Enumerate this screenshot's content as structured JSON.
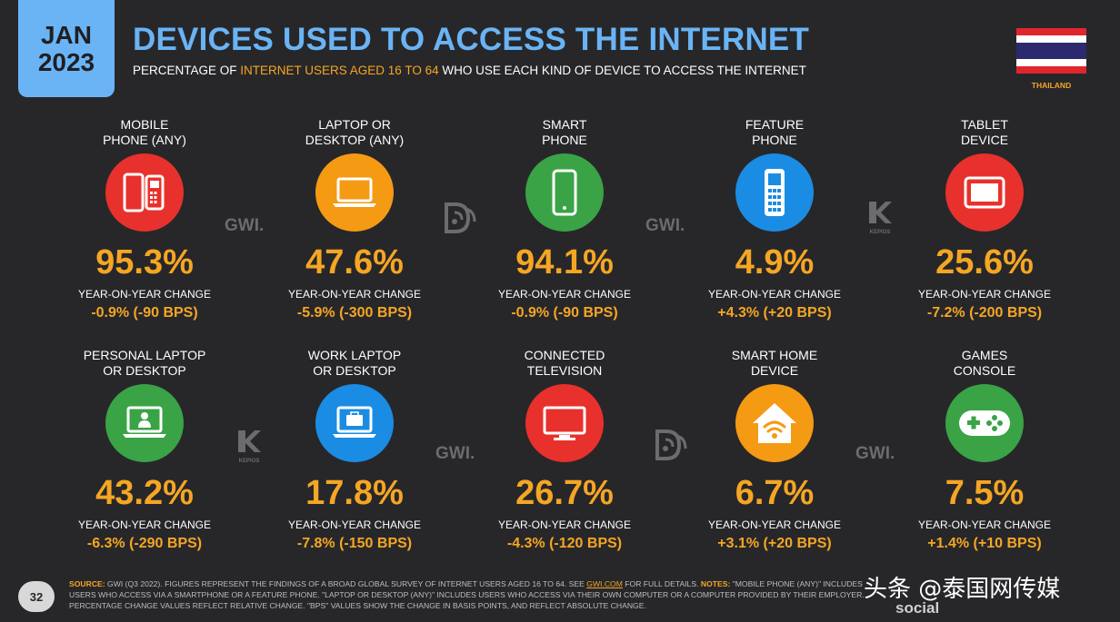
{
  "badge": {
    "month": "JAN",
    "year": "2023"
  },
  "title": "DEVICES USED TO ACCESS THE INTERNET",
  "subtitle": {
    "pre": "PERCENTAGE OF ",
    "highlight": "INTERNET USERS AGED 16 TO 64",
    "post": " WHO USE EACH KIND OF DEVICE TO ACCESS THE INTERNET"
  },
  "country": "THAILAND",
  "yoy_label": "YEAR-ON-YEAR CHANGE",
  "devices": [
    {
      "label": "MOBILE\nPHONE (ANY)",
      "value": "95.3%",
      "change": "-0.9% (-90 BPS)",
      "icon": "mobile-phones-icon",
      "color": "#e8312c"
    },
    {
      "label": "LAPTOP OR\nDESKTOP (ANY)",
      "value": "47.6%",
      "change": "-5.9% (-300 BPS)",
      "icon": "laptop-icon",
      "color": "#f59a13"
    },
    {
      "label": "SMART\nPHONE",
      "value": "94.1%",
      "change": "-0.9% (-90 BPS)",
      "icon": "smartphone-icon",
      "color": "#3aa346"
    },
    {
      "label": "FEATURE\nPHONE",
      "value": "4.9%",
      "change": "+4.3% (+20 BPS)",
      "icon": "feature-phone-icon",
      "color": "#1b8ce3"
    },
    {
      "label": "TABLET\nDEVICE",
      "value": "25.6%",
      "change": "-7.2% (-200 BPS)",
      "icon": "tablet-icon",
      "color": "#e8312c"
    },
    {
      "label": "PERSONAL LAPTOP\nOR DESKTOP",
      "value": "43.2%",
      "change": "-6.3% (-290 BPS)",
      "icon": "personal-laptop-icon",
      "color": "#3aa346"
    },
    {
      "label": "WORK LAPTOP\nOR DESKTOP",
      "value": "17.8%",
      "change": "-7.8% (-150 BPS)",
      "icon": "work-laptop-icon",
      "color": "#1b8ce3"
    },
    {
      "label": "CONNECTED\nTELEVISION",
      "value": "26.7%",
      "change": "-4.3% (-120 BPS)",
      "icon": "television-icon",
      "color": "#e8312c"
    },
    {
      "label": "SMART HOME\nDEVICE",
      "value": "6.7%",
      "change": "+3.1% (+20 BPS)",
      "icon": "smart-home-icon",
      "color": "#f59a13"
    },
    {
      "label": "GAMES\nCONSOLE",
      "value": "7.5%",
      "change": "+1.4% (+10 BPS)",
      "icon": "game-controller-icon",
      "color": "#3aa346"
    }
  ],
  "watermarks": {
    "gwi": "GWI.",
    "kepios": "KEPIOS"
  },
  "footer": {
    "source_label": "SOURCE:",
    "source_text": " GWI (Q3 2022). FIGURES REPRESENT THE FINDINGS OF A BROAD GLOBAL SURVEY OF INTERNET USERS AGED 16 TO 64. SEE ",
    "link": "GWI.COM",
    "after_link": " FOR FULL DETAILS. ",
    "notes_label": "NOTES:",
    "notes_text": " \"MOBILE PHONE (ANY)\" INCLUDES USERS WHO ACCESS VIA A SMARTPHONE OR A FEATURE PHONE. \"LAPTOP OR DESKTOP (ANY)\" INCLUDES USERS WHO ACCESS VIA THEIR OWN COMPUTER OR A COMPUTER PROVIDED BY THEIR EMPLOYER. PERCENTAGE CHANGE VALUES REFLECT RELATIVE CHANGE. \"BPS\" VALUES SHOW THE CHANGE IN BASIS POINTS, AND REFLECT ABSOLUTE CHANGE."
  },
  "page_number": "32",
  "overlay": {
    "text": "头条 @泰国网传媒",
    "sub": "social"
  }
}
